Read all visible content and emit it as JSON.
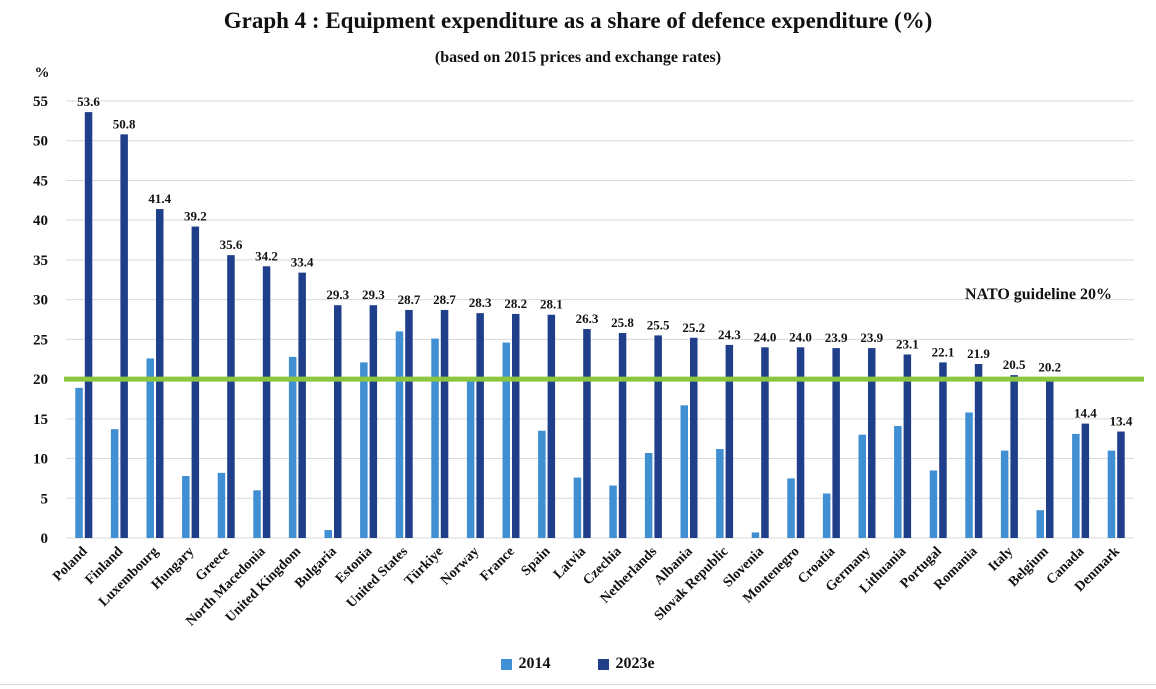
{
  "chart_data": {
    "type": "bar",
    "title": "Graph 4 : Equipment expenditure as a share of defence expenditure (%)",
    "subtitle": "(based on 2015 prices and exchange rates)",
    "ylabel": "%",
    "xlabel": "",
    "ylim": [
      0,
      55
    ],
    "yticks": [
      0,
      5,
      10,
      15,
      20,
      25,
      30,
      35,
      40,
      45,
      50,
      55
    ],
    "grid": true,
    "legend_position": "bottom",
    "categories": [
      "Poland",
      "Finland",
      "Luxembourg",
      "Hungary",
      "Greece",
      "North Macedonia",
      "United Kingdom",
      "Bulgaria",
      "Estonia",
      "United States",
      "Türkiye",
      "Norway",
      "France",
      "Spain",
      "Latvia",
      "Czechia",
      "Netherlands",
      "Albania",
      "Slovak Republic",
      "Slovenia",
      "Montenegro",
      "Croatia",
      "Germany",
      "Lithuania",
      "Portugal",
      "Romania",
      "Italy",
      "Belgium",
      "Canada",
      "Denmark"
    ],
    "series": [
      {
        "name": "2014",
        "color": "#3f8fd2",
        "labels_shown": false,
        "values": [
          18.9,
          13.7,
          22.6,
          7.8,
          8.2,
          6.0,
          22.8,
          1.0,
          22.1,
          26.0,
          25.1,
          20.1,
          24.6,
          13.5,
          7.6,
          6.6,
          10.7,
          16.7,
          11.2,
          0.7,
          7.5,
          5.6,
          13.0,
          14.1,
          8.5,
          15.8,
          11.0,
          3.5,
          13.1,
          11.0
        ]
      },
      {
        "name": "2023e",
        "color": "#1f3f8a",
        "labels_shown": true,
        "values": [
          53.6,
          50.8,
          41.4,
          39.2,
          35.6,
          34.2,
          33.4,
          29.3,
          29.3,
          28.7,
          28.7,
          28.3,
          28.2,
          28.1,
          26.3,
          25.8,
          25.5,
          25.2,
          24.3,
          24.0,
          24.0,
          23.9,
          23.9,
          23.1,
          22.1,
          21.9,
          20.5,
          20.2,
          14.4,
          13.4
        ],
        "data_labels": [
          "53.6",
          "50.8",
          "41.4",
          "39.2",
          "35.6",
          "34.2",
          "33.4",
          "29.3",
          "29.3",
          "28.7",
          "28.7",
          "28.3",
          "28.2",
          "28.1",
          "26.3",
          "25.8",
          "25.5",
          "25.2",
          "24.3",
          "24.0",
          "24.0",
          "23.9",
          "23.9",
          "23.1",
          "22.1",
          "21.9",
          "20.5",
          "20.2",
          "14.4",
          "13.4"
        ]
      }
    ],
    "reference_line": {
      "value": 20,
      "label": "NATO guideline 20%",
      "color": "#8cc63f"
    },
    "colors": {
      "grid": "#d9d9d9",
      "axis_text": "#111111"
    }
  }
}
